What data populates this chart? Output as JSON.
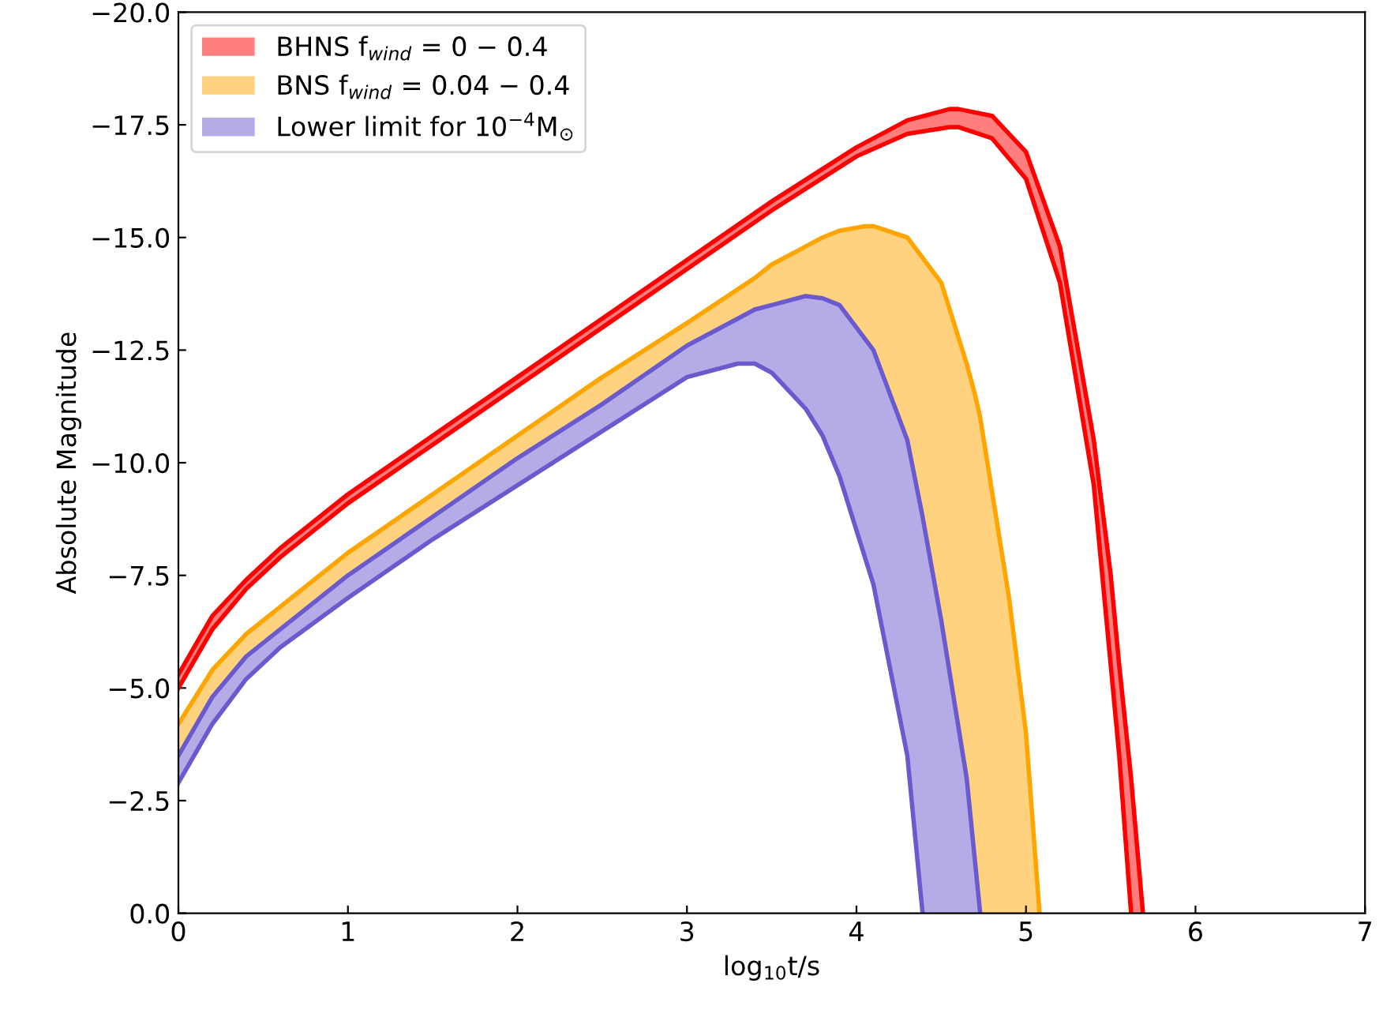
{
  "chart_data": {
    "type": "line",
    "xlabel": "log$_{10}$t/s",
    "ylabel": "Absolute Magnitude",
    "xlim": [
      0,
      7
    ],
    "ylim": [
      0,
      -20
    ],
    "xticks": [
      0,
      1,
      2,
      3,
      4,
      5,
      6,
      7
    ],
    "yticks": [
      {
        "value": 0,
        "label": "0.0"
      },
      {
        "value": -2.5,
        "label": "−2.5"
      },
      {
        "value": -5,
        "label": "−5.0"
      },
      {
        "value": -7.5,
        "label": "−7.5"
      },
      {
        "value": -10,
        "label": "−10.0"
      },
      {
        "value": -12.5,
        "label": "−12.5"
      },
      {
        "value": -15,
        "label": "−15.0"
      },
      {
        "value": -17.5,
        "label": "−17.5"
      },
      {
        "value": -20,
        "label": "−20.0"
      }
    ],
    "legend": "top left",
    "series": [
      {
        "name": "BHNS f$_{wind}$ = 0 − 0.4",
        "color": "#ff0000",
        "x": [
          0,
          0.2,
          0.4,
          0.6,
          1.0,
          1.5,
          2.0,
          2.5,
          3.0,
          3.5,
          4.0,
          4.3,
          4.55,
          4.6,
          4.8,
          5.0,
          5.2,
          5.4,
          5.5,
          5.55,
          5.62,
          5.69
        ],
        "values": [
          -5.3,
          -6.6,
          -7.4,
          -8.1,
          -9.3,
          -10.6,
          -11.9,
          -13.2,
          -14.5,
          -15.8,
          -17.0,
          -17.6,
          -17.85,
          -17.85,
          -17.7,
          -16.9,
          -14.8,
          -10.5,
          -7.5,
          -5.5,
          -3.0,
          0
        ],
        "upper": [
          -5.3,
          -6.6,
          -7.4,
          -8.1,
          -9.3,
          -10.6,
          -11.9,
          -13.2,
          -14.5,
          -15.8,
          -17.0,
          -17.6,
          -17.85,
          -17.85,
          -17.7,
          -16.9,
          -14.8,
          -10.5,
          -7.5,
          -5.5,
          -3.0,
          0
        ],
        "lower": [
          -5.0,
          -6.3,
          -7.2,
          -7.9,
          -9.1,
          -10.4,
          -11.7,
          -13.0,
          -14.3,
          -15.6,
          -16.8,
          -17.3,
          -17.45,
          -17.45,
          -17.2,
          -16.3,
          -14.0,
          -9.5,
          -5.5,
          -3.5,
          0,
          0
        ]
      },
      {
        "color": "#ff0000",
        "x": [
          0,
          0.2,
          0.4,
          0.6,
          1.0,
          1.5,
          2.0,
          2.5,
          3.0,
          3.5,
          4.0,
          4.3,
          4.55,
          4.6,
          4.8,
          5.0,
          5.2,
          5.4,
          5.5,
          5.55,
          5.62
        ],
        "values": [
          -5.0,
          -6.3,
          -7.2,
          -7.9,
          -9.1,
          -10.4,
          -11.7,
          -13.0,
          -14.3,
          -15.6,
          -16.8,
          -17.3,
          -17.45,
          -17.45,
          -17.2,
          -16.3,
          -14.0,
          -9.5,
          -5.5,
          -3.5,
          0
        ]
      },
      {
        "name": "BNS f$_{wind}$ = 0.04 − 0.4",
        "color": "#ffa500",
        "x": [
          0,
          0.2,
          0.4,
          0.6,
          1.0,
          1.5,
          2.0,
          2.5,
          3.0,
          3.4,
          3.5,
          3.7,
          3.8,
          3.9,
          4.05,
          4.1,
          4.3,
          4.5,
          4.65,
          4.7,
          4.73,
          4.9,
          5.0,
          5.08
        ],
        "values": [
          -4.2,
          -5.4,
          -6.2,
          -6.8,
          -8.0,
          -9.3,
          -10.6,
          -11.9,
          -13.1,
          -14.1,
          -14.4,
          -14.8,
          -15.0,
          -15.15,
          -15.25,
          -15.25,
          -15.0,
          -14.0,
          -12.2,
          -11.5,
          -11.0,
          -7.0,
          -4.0,
          0
        ],
        "upper": [
          -4.2,
          -5.4,
          -6.2,
          -6.8,
          -8.0,
          -9.3,
          -10.6,
          -11.9,
          -13.1,
          -14.1,
          -14.4,
          -14.8,
          -15.0,
          -15.15,
          -15.25,
          -15.25,
          -15.0,
          -14.0,
          -12.2,
          -11.5,
          -11.0,
          -7.0,
          -4.0,
          0
        ],
        "lower": [
          -3.5,
          -4.8,
          -5.7,
          -6.3,
          -7.5,
          -8.8,
          -10.1,
          -11.3,
          -12.6,
          -13.4,
          -13.5,
          -13.7,
          -13.65,
          -13.5,
          -12.8,
          -12.5,
          -10.5,
          -6.5,
          -3.0,
          -1.2,
          0,
          0,
          0,
          0
        ]
      },
      {
        "name": "Lower limit for 10$^{−4}$M$_{⊙}$",
        "color": "#6a5acd",
        "x": [
          0,
          0.2,
          0.4,
          0.6,
          1.0,
          1.5,
          2.0,
          2.5,
          3.0,
          3.3,
          3.4,
          3.5,
          3.7,
          3.8,
          3.9,
          4.1,
          4.3,
          4.39,
          4.5,
          4.65,
          4.73
        ],
        "values": [
          -3.5,
          -4.8,
          -5.7,
          -6.3,
          -7.5,
          -8.8,
          -10.1,
          -11.3,
          -12.6,
          -13.2,
          -13.4,
          -13.5,
          -13.7,
          -13.65,
          -13.5,
          -12.5,
          -10.5,
          -8.8,
          -6.5,
          -3.0,
          0
        ],
        "upper": [
          -3.5,
          -4.8,
          -5.7,
          -6.3,
          -7.5,
          -8.8,
          -10.1,
          -11.3,
          -12.6,
          -13.2,
          -13.4,
          -13.5,
          -13.7,
          -13.65,
          -13.5,
          -12.5,
          -10.5,
          -8.8,
          -6.5,
          -3.0,
          0
        ],
        "lower": [
          -2.9,
          -4.2,
          -5.2,
          -5.9,
          -7.0,
          -8.3,
          -9.5,
          -10.7,
          -11.9,
          -12.2,
          -12.2,
          -12.0,
          -11.2,
          -10.6,
          -9.7,
          -7.3,
          -3.5,
          0,
          0,
          0,
          0
        ]
      },
      {
        "color": "#6a5acd",
        "x": [
          0,
          0.2,
          0.4,
          0.6,
          1.0,
          1.5,
          2.0,
          2.5,
          3.0,
          3.3,
          3.4,
          3.5,
          3.7,
          3.8,
          3.9,
          4.1,
          4.3,
          4.39
        ],
        "values": [
          -2.9,
          -4.2,
          -5.2,
          -5.9,
          -7.0,
          -8.3,
          -9.5,
          -10.7,
          -11.9,
          -12.2,
          -12.2,
          -12.0,
          -11.2,
          -10.6,
          -9.7,
          -7.3,
          -3.5,
          0
        ]
      }
    ]
  }
}
